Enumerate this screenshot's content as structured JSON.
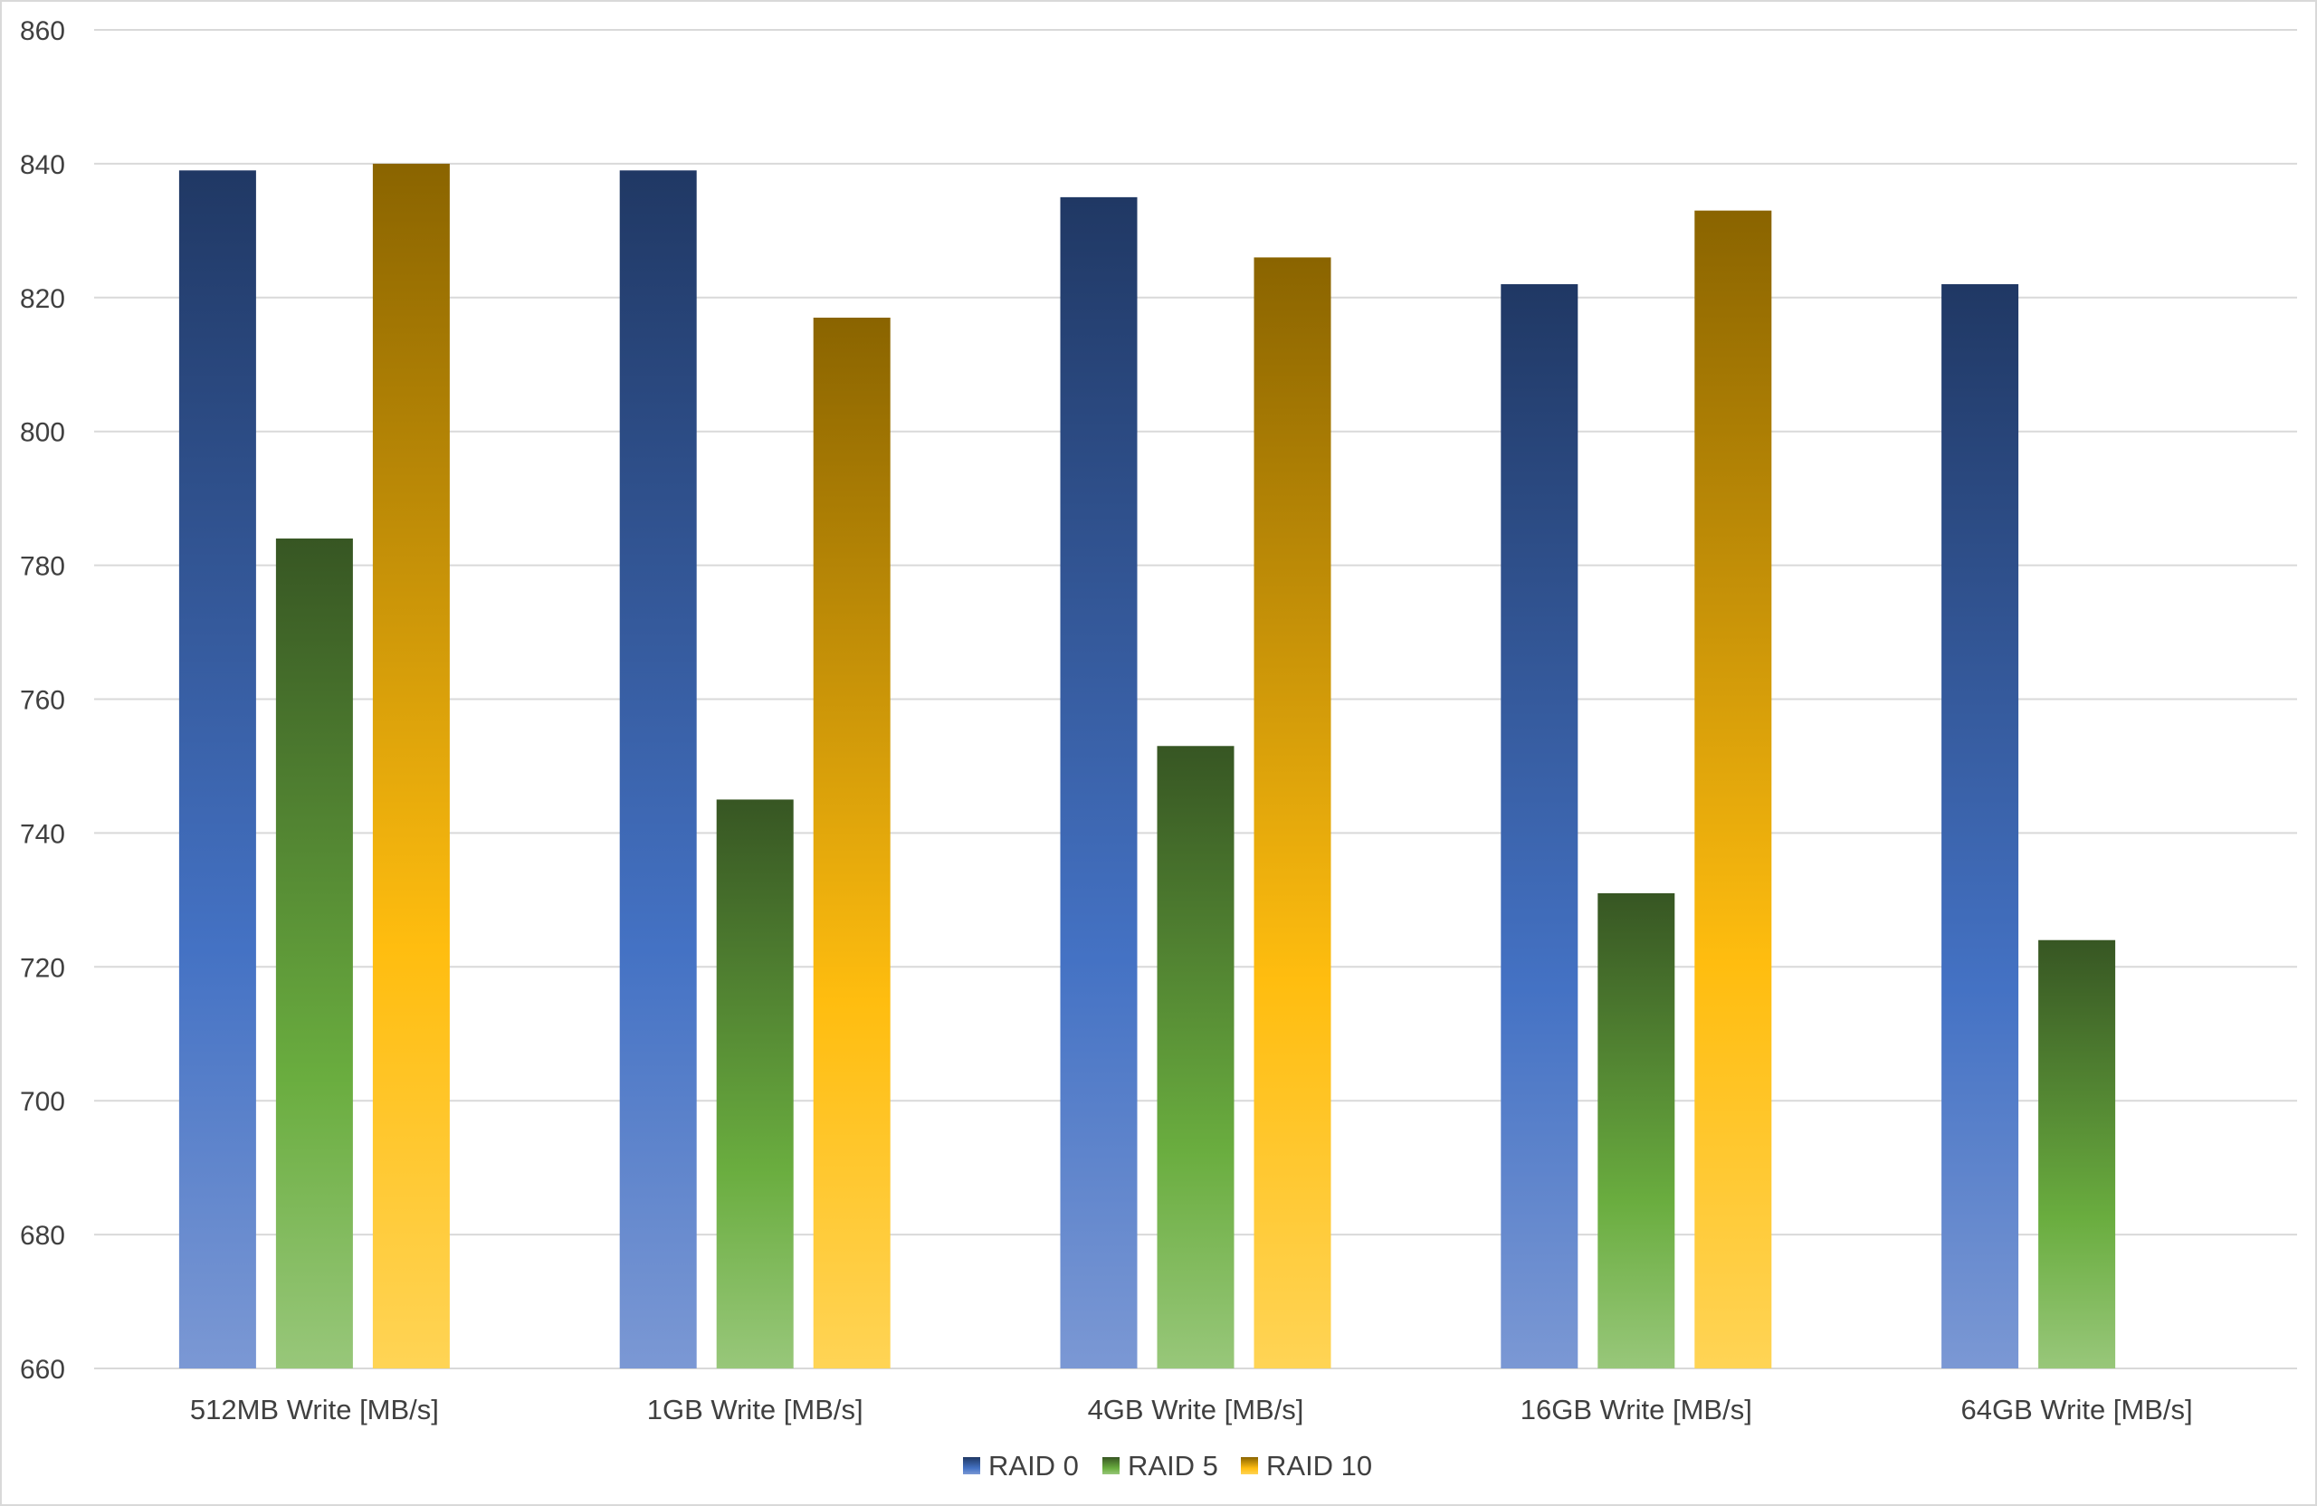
{
  "chart_data": {
    "type": "bar",
    "title": "",
    "xlabel": "",
    "ylabel": "",
    "categories": [
      "512MB Write [MB/s]",
      "1GB Write [MB/s]",
      "4GB Write [MB/s]",
      "16GB Write [MB/s]",
      "64GB Write [MB/s]"
    ],
    "series": [
      {
        "name": "RAID 0",
        "values": [
          839,
          839,
          835,
          822,
          822
        ],
        "color_top": "#203864",
        "color_mid": "#4472c4",
        "color_bottom": "#7b98d4"
      },
      {
        "name": "RAID 5",
        "values": [
          784,
          745,
          753,
          731,
          724
        ],
        "color_top": "#375623",
        "color_mid": "#6aad3f",
        "color_bottom": "#98c77a"
      },
      {
        "name": "RAID 10",
        "values": [
          840,
          817,
          826,
          833,
          null
        ],
        "color_top": "#8a6400",
        "color_mid": "#ffbd0f",
        "color_bottom": "#ffd455"
      }
    ],
    "ylim": [
      660,
      860
    ],
    "yticks": [
      660,
      680,
      700,
      720,
      740,
      760,
      780,
      800,
      820,
      840,
      860
    ],
    "grid": true,
    "legend_position": "bottom"
  }
}
